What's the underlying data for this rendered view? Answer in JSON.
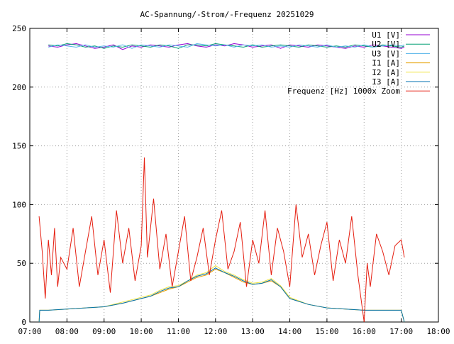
{
  "chart_data": {
    "type": "line",
    "title": "AC-Spannung/-Strom/-Frequenz 20251029",
    "xlabel": "",
    "ylabel": "",
    "xlim": [
      "07:00",
      "18:00"
    ],
    "ylim": [
      0,
      250
    ],
    "x_ticks": [
      "07:00",
      "08:00",
      "09:00",
      "10:00",
      "11:00",
      "12:00",
      "13:00",
      "14:00",
      "15:00",
      "16:00",
      "17:00",
      "18:00"
    ],
    "y_ticks": [
      0,
      50,
      100,
      150,
      200,
      250
    ],
    "grid": true,
    "legend_position": "top-right",
    "series": [
      {
        "name": "U1 [V]",
        "color": "#9400d3",
        "x": [
          "07:30",
          "07:45",
          "08:00",
          "08:15",
          "08:30",
          "08:45",
          "09:00",
          "09:15",
          "09:30",
          "09:45",
          "10:00",
          "10:15",
          "10:30",
          "10:45",
          "11:00",
          "11:15",
          "11:30",
          "11:45",
          "12:00",
          "12:15",
          "12:30",
          "12:45",
          "13:00",
          "13:15",
          "13:30",
          "13:45",
          "14:00",
          "14:15",
          "14:30",
          "14:45",
          "15:00",
          "15:15",
          "15:30",
          "15:45",
          "16:00",
          "16:15",
          "16:30",
          "16:45",
          "17:00",
          "17:05"
        ],
        "values": [
          235,
          234,
          236,
          237,
          235,
          233,
          234,
          236,
          232,
          235,
          234,
          236,
          235,
          234,
          236,
          237,
          235,
          234,
          236,
          235,
          237,
          236,
          234,
          235,
          236,
          233,
          236,
          235,
          234,
          236,
          235,
          234,
          233,
          235,
          234,
          236,
          235,
          234,
          233,
          234
        ]
      },
      {
        "name": "U2 [V]",
        "color": "#009e73",
        "x": [
          "07:30",
          "07:45",
          "08:00",
          "08:15",
          "08:30",
          "08:45",
          "09:00",
          "09:15",
          "09:30",
          "09:45",
          "10:00",
          "10:15",
          "10:30",
          "10:45",
          "11:00",
          "11:15",
          "11:30",
          "11:45",
          "12:00",
          "12:15",
          "12:30",
          "12:45",
          "13:00",
          "13:15",
          "13:30",
          "13:45",
          "14:00",
          "14:15",
          "14:30",
          "14:45",
          "15:00",
          "15:15",
          "15:30",
          "15:45",
          "16:00",
          "16:15",
          "16:30",
          "16:45",
          "17:00",
          "17:05"
        ],
        "values": [
          236,
          235,
          237,
          236,
          234,
          235,
          233,
          235,
          234,
          236,
          235,
          234,
          236,
          235,
          233,
          236,
          236,
          235,
          237,
          236,
          235,
          234,
          236,
          234,
          235,
          236,
          235,
          234,
          236,
          235,
          234,
          235,
          234,
          236,
          235,
          234,
          236,
          235,
          234,
          235
        ]
      },
      {
        "name": "U3 [V]",
        "color": "#56b4e9",
        "x": [
          "07:30",
          "07:45",
          "08:00",
          "08:15",
          "08:30",
          "08:45",
          "09:00",
          "09:15",
          "09:30",
          "09:45",
          "10:00",
          "10:15",
          "10:30",
          "10:45",
          "11:00",
          "11:15",
          "11:30",
          "11:45",
          "12:00",
          "12:15",
          "12:30",
          "12:45",
          "13:00",
          "13:15",
          "13:30",
          "13:45",
          "14:00",
          "14:15",
          "14:30",
          "14:45",
          "15:00",
          "15:15",
          "15:30",
          "15:45",
          "16:00",
          "16:15",
          "16:30",
          "16:45",
          "17:00",
          "17:05"
        ],
        "values": [
          234,
          236,
          235,
          234,
          236,
          234,
          235,
          234,
          236,
          233,
          236,
          235,
          234,
          236,
          235,
          234,
          237,
          236,
          235,
          236,
          234,
          236,
          235,
          236,
          234,
          235,
          234,
          236,
          235,
          234,
          236,
          234,
          235,
          234,
          236,
          234,
          235,
          236,
          235,
          236
        ]
      },
      {
        "name": "I1 [A]",
        "color": "#e69f00",
        "x": [
          "07:15",
          "07:16",
          "07:30",
          "08:00",
          "08:30",
          "09:00",
          "09:30",
          "10:00",
          "10:15",
          "10:30",
          "10:45",
          "11:00",
          "11:15",
          "11:30",
          "11:45",
          "12:00",
          "12:15",
          "12:30",
          "12:45",
          "13:00",
          "13:15",
          "13:30",
          "13:45",
          "14:00",
          "14:30",
          "15:00",
          "15:30",
          "16:00",
          "16:30",
          "17:00",
          "17:05"
        ],
        "values": [
          0,
          10,
          10,
          11,
          12,
          13,
          16,
          20,
          22,
          25,
          28,
          30,
          34,
          38,
          40,
          45,
          42,
          38,
          34,
          32,
          33,
          35,
          30,
          20,
          15,
          12,
          11,
          10,
          10,
          10,
          0
        ]
      },
      {
        "name": "I2 [A]",
        "color": "#f0e442",
        "x": [
          "07:15",
          "07:16",
          "07:30",
          "08:00",
          "08:30",
          "09:00",
          "09:30",
          "10:00",
          "10:15",
          "10:30",
          "10:45",
          "11:00",
          "11:15",
          "11:30",
          "11:45",
          "12:00",
          "12:15",
          "12:30",
          "12:45",
          "13:00",
          "13:15",
          "13:30",
          "13:45",
          "14:00",
          "14:30",
          "15:00",
          "15:30",
          "16:00",
          "16:30",
          "17:00",
          "17:05"
        ],
        "values": [
          0,
          10,
          10,
          11,
          12,
          13,
          17,
          21,
          23,
          27,
          30,
          31,
          35,
          40,
          42,
          48,
          43,
          40,
          36,
          33,
          34,
          37,
          31,
          21,
          15,
          12,
          11,
          10,
          10,
          10,
          0
        ]
      },
      {
        "name": "I3 [A]",
        "color": "#0072b2",
        "x": [
          "07:15",
          "07:16",
          "07:30",
          "08:00",
          "08:30",
          "09:00",
          "09:30",
          "10:00",
          "10:15",
          "10:30",
          "10:45",
          "11:00",
          "11:15",
          "11:30",
          "11:45",
          "12:00",
          "12:15",
          "12:30",
          "12:45",
          "13:00",
          "13:15",
          "13:30",
          "13:45",
          "14:00",
          "14:30",
          "15:00",
          "15:30",
          "16:00",
          "16:30",
          "17:00",
          "17:05"
        ],
        "values": [
          0,
          10,
          10,
          11,
          12,
          13,
          16,
          20,
          22,
          26,
          29,
          30,
          35,
          39,
          41,
          46,
          42,
          39,
          35,
          32,
          33,
          36,
          30,
          20,
          15,
          12,
          11,
          10,
          10,
          10,
          0
        ]
      },
      {
        "name": "Frequenz [Hz] 1000x Zoom",
        "color": "#e51e10",
        "x": [
          "07:15",
          "07:20",
          "07:25",
          "07:30",
          "07:35",
          "07:40",
          "07:45",
          "07:50",
          "08:00",
          "08:10",
          "08:20",
          "08:30",
          "08:40",
          "08:50",
          "09:00",
          "09:10",
          "09:20",
          "09:30",
          "09:40",
          "09:50",
          "10:00",
          "10:05",
          "10:10",
          "10:20",
          "10:30",
          "10:40",
          "10:50",
          "11:00",
          "11:10",
          "11:20",
          "11:30",
          "11:40",
          "11:50",
          "12:00",
          "12:10",
          "12:20",
          "12:30",
          "12:40",
          "12:50",
          "13:00",
          "13:10",
          "13:20",
          "13:30",
          "13:40",
          "13:50",
          "14:00",
          "14:10",
          "14:20",
          "14:30",
          "14:40",
          "14:50",
          "15:00",
          "15:10",
          "15:20",
          "15:30",
          "15:40",
          "15:50",
          "16:00",
          "16:05",
          "16:10",
          "16:20",
          "16:30",
          "16:40",
          "16:50",
          "17:00",
          "17:05"
        ],
        "values": [
          90,
          60,
          20,
          70,
          40,
          80,
          30,
          55,
          45,
          80,
          30,
          60,
          90,
          40,
          70,
          25,
          95,
          50,
          80,
          35,
          65,
          140,
          55,
          105,
          45,
          75,
          30,
          60,
          90,
          35,
          55,
          80,
          40,
          70,
          95,
          45,
          60,
          85,
          30,
          70,
          50,
          95,
          40,
          80,
          60,
          30,
          100,
          55,
          75,
          40,
          65,
          85,
          35,
          70,
          50,
          90,
          40,
          0,
          50,
          30,
          75,
          60,
          40,
          65,
          70,
          55
        ]
      }
    ]
  }
}
